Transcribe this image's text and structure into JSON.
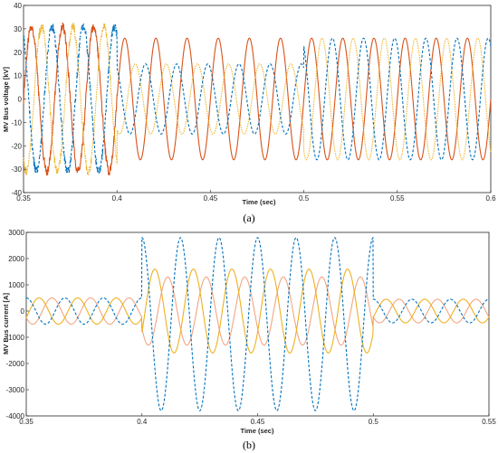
{
  "figure": {
    "captions": [
      "(a)",
      "(b)"
    ]
  },
  "colors": {
    "blue": "#0072bd",
    "orange_red": "#d95319",
    "yellow": "#edb120",
    "salmon": "#f4a582"
  },
  "chart_data": [
    {
      "type": "line",
      "caption": "(a)",
      "xlabel": "Time (sec)",
      "ylabel": "MV Bus voltage [kV]",
      "xlim": [
        0.35,
        0.6
      ],
      "ylim": [
        -40,
        40
      ],
      "xticks": [
        0.35,
        0.4,
        0.45,
        0.5,
        0.55,
        0.6
      ],
      "xtick_labels": [
        "0.35",
        "0.4",
        "0.45",
        "0.5",
        "0.55",
        "0.6"
      ],
      "yticks": [
        -40,
        -30,
        -20,
        -10,
        0,
        10,
        20,
        30,
        40
      ],
      "ytick_labels": [
        "-40",
        "-30",
        "-20",
        "-10",
        "0",
        "10",
        "20",
        "30",
        "40"
      ],
      "grid": false,
      "frequency_hz": 60,
      "segments": [
        {
          "t_start": 0.35,
          "t_end": 0.4,
          "amplitude": 31,
          "noisy": true
        },
        {
          "t_start": 0.4,
          "t_end": 0.5,
          "amplitude_phase_a": 26,
          "amplitude_other_phases": 15,
          "noisy": false
        },
        {
          "t_start": 0.5,
          "t_end": 0.6,
          "amplitude": 26,
          "noisy": false
        }
      ],
      "series": [
        {
          "color": "#d95319",
          "style": "solid",
          "phase_deg": 0
        },
        {
          "color": "#edb120",
          "style": "dotted",
          "phase_deg": -120
        },
        {
          "color": "#0072bd",
          "style": "dashed",
          "phase_deg": 120
        }
      ]
    },
    {
      "type": "line",
      "caption": "(b)",
      "xlabel": "Time (sec)",
      "ylabel": "MV Bus current [A]",
      "xlim": [
        0.35,
        0.55
      ],
      "ylim": [
        -4000,
        3000
      ],
      "xticks": [
        0.35,
        0.4,
        0.45,
        0.5,
        0.55
      ],
      "xtick_labels": [
        "0.35",
        "0.4",
        "0.45",
        "0.5",
        "0.55"
      ],
      "yticks": [
        -4000,
        -3000,
        -2000,
        -1000,
        0,
        1000,
        2000,
        3000
      ],
      "ytick_labels": [
        "-4000",
        "-3000",
        "-2000",
        "-1000",
        "0",
        "1000",
        "2000",
        "3000"
      ],
      "grid": false,
      "frequency_hz": 60,
      "segments": [
        {
          "t_start": 0.35,
          "t_end": 0.4,
          "amplitude": 500
        },
        {
          "t_start": 0.4,
          "t_end": 0.5,
          "blue_offset": -500,
          "blue_amplitude": 3300,
          "yellow_amplitude": 1600,
          "salmon_amplitude": 1300
        },
        {
          "t_start": 0.5,
          "t_end": 0.55,
          "amplitude": 450
        }
      ],
      "series": [
        {
          "color": "#0072bd",
          "style": "dashed",
          "phase_deg": 90
        },
        {
          "color": "#edb120",
          "style": "solid",
          "phase_deg": -30
        },
        {
          "color": "#f4a582",
          "style": "solid",
          "phase_deg": -150
        }
      ]
    }
  ]
}
